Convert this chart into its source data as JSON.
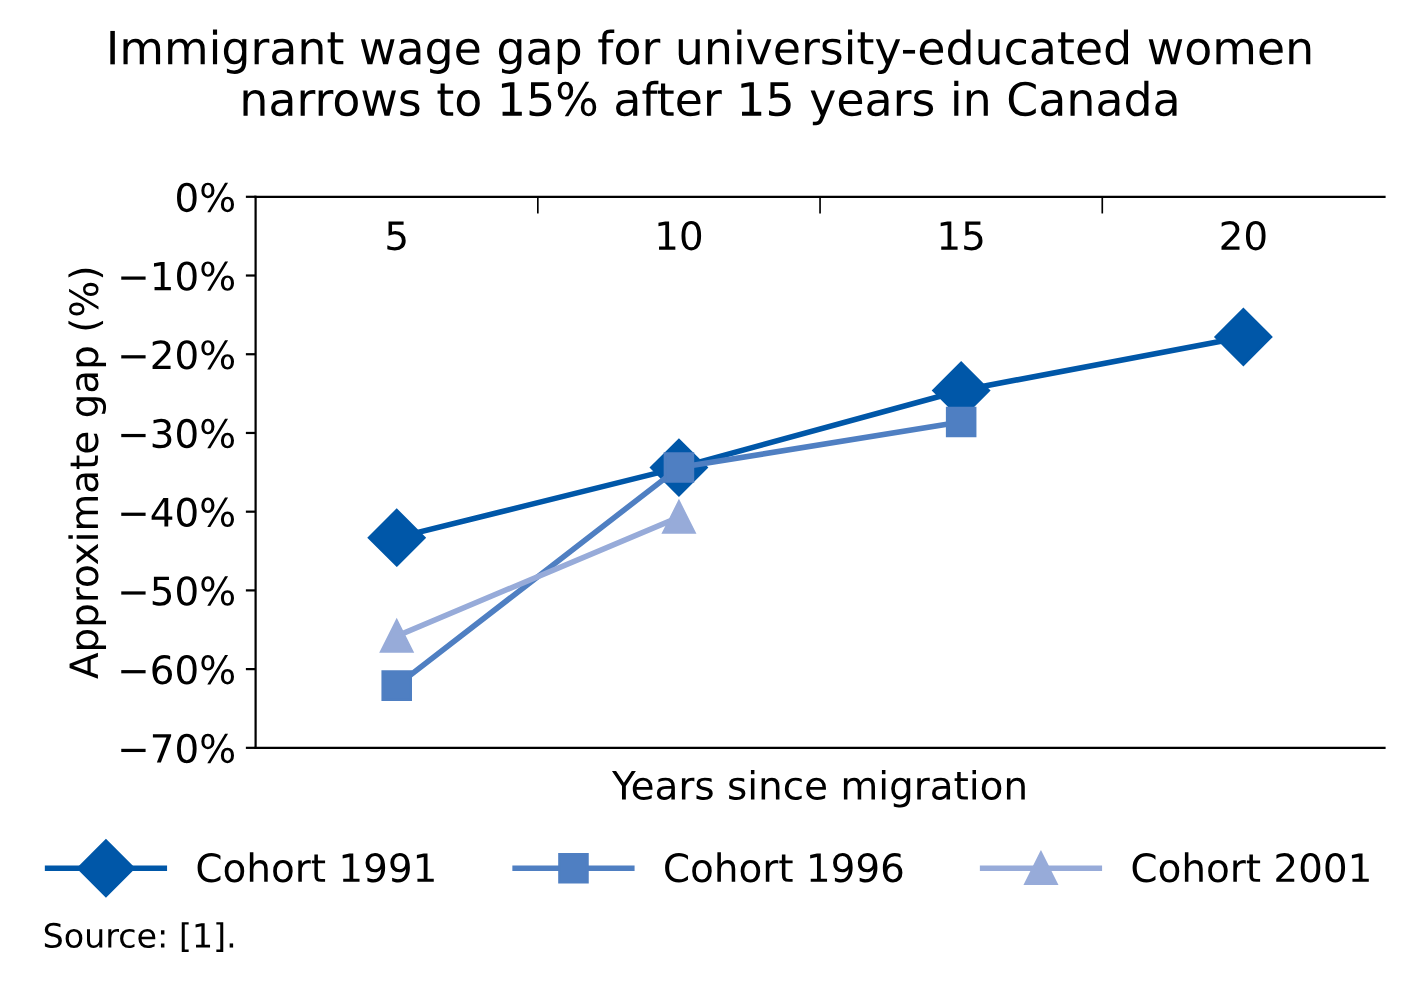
{
  "chart_data": {
    "type": "line",
    "title": "Immigrant wage gap for university-educated women\nnarrows to 15% after 15 years in Canada",
    "xlabel": "Years since migration",
    "ylabel": "Approximate gap (%)",
    "categories": [
      "5",
      "10",
      "15",
      "20"
    ],
    "series": [
      {
        "name": "Cohort 1991",
        "color": "#0057a8",
        "marker": "diamond",
        "values": [
          -43.3,
          -34.4,
          -24.6,
          -17.8
        ]
      },
      {
        "name": "Cohort 1996",
        "color": "#4f7fc2",
        "marker": "square",
        "values": [
          -62.1,
          -34.4,
          -28.6,
          null
        ]
      },
      {
        "name": "Cohort 2001",
        "color": "#97abd9",
        "marker": "triangle",
        "values": [
          -55.8,
          -40.7,
          null,
          null
        ]
      }
    ],
    "ylim": [
      -70,
      0
    ],
    "yticks": [
      {
        "value": 0,
        "label": "0%"
      },
      {
        "value": -10,
        "label": "−10%"
      },
      {
        "value": -20,
        "label": "−20%"
      },
      {
        "value": -30,
        "label": "−30%"
      },
      {
        "value": -40,
        "label": "−40%"
      },
      {
        "value": -50,
        "label": "−50%"
      },
      {
        "value": -60,
        "label": "−60%"
      },
      {
        "value": -70,
        "label": "−70%"
      }
    ],
    "grid": false,
    "legend": "bottom",
    "annotations": [
      "Source: [1]."
    ]
  }
}
